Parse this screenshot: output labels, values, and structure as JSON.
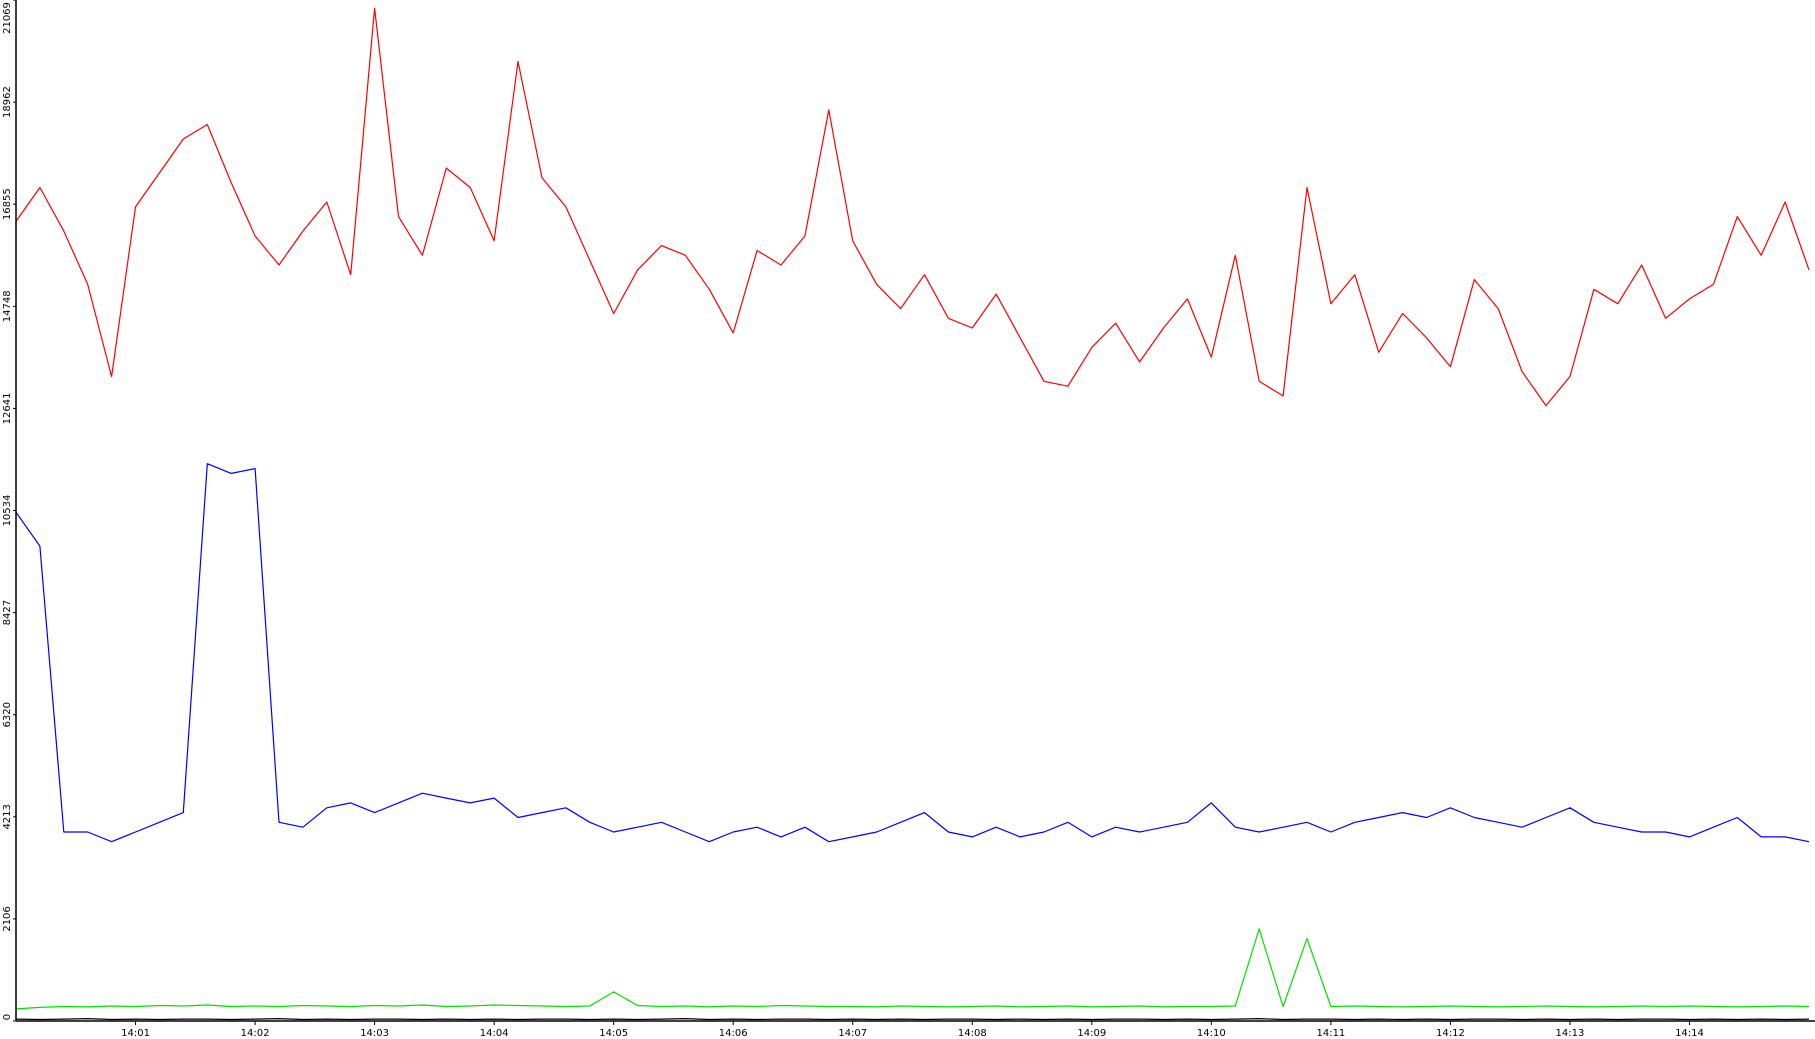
{
  "chart_data": {
    "type": "line",
    "x": [
      0,
      0.2,
      0.4,
      0.6,
      0.8,
      1,
      1.2,
      1.4,
      1.6,
      1.8,
      2,
      2.2,
      2.4,
      2.6,
      2.8,
      3,
      3.2,
      3.4,
      3.6,
      3.8,
      4,
      4.2,
      4.4,
      4.6,
      4.8,
      5,
      5.2,
      5.4,
      5.6,
      5.8,
      6,
      6.2,
      6.4,
      6.6,
      6.8,
      7,
      7.2,
      7.4,
      7.6,
      7.8,
      8,
      8.2,
      8.4,
      8.6,
      8.8,
      9,
      9.2,
      9.4,
      9.6,
      9.8,
      10,
      10.2,
      10.4,
      10.6,
      10.8,
      11,
      11.2,
      11.4,
      11.6,
      11.8,
      12,
      12.2,
      12.4,
      12.6,
      12.8,
      13,
      13.2,
      13.4,
      13.6,
      13.8,
      14,
      14.2,
      14.4,
      14.6,
      14.8,
      15
    ],
    "series": [
      {
        "color": "#ff0000",
        "values": [
          16500,
          17200,
          16300,
          15200,
          13300,
          16800,
          17500,
          18200,
          18500,
          17300,
          16200,
          15600,
          16300,
          16900,
          15400,
          20900,
          16600,
          15800,
          17600,
          17200,
          16100,
          19800,
          17400,
          16800,
          15700,
          14600,
          15500,
          16000,
          15800,
          15100,
          14200,
          15900,
          15600,
          16200,
          18800,
          16100,
          15200,
          14700,
          15400,
          14500,
          14300,
          15000,
          14100,
          13200,
          13100,
          13900,
          14400,
          13600,
          14300,
          14900,
          13700,
          15800,
          13200,
          12900,
          17200,
          14800,
          15400,
          13800,
          14600,
          14100,
          13500,
          15300,
          14700,
          13400,
          12700,
          13300,
          15100,
          14800,
          15600,
          14500,
          14900,
          15200,
          16600,
          15800,
          16900,
          15500
        ]
      },
      {
        "color": "#0000ff",
        "values": [
          10500,
          9800,
          3900,
          3900,
          3700,
          3900,
          4100,
          4300,
          11500,
          11300,
          11400,
          4100,
          4000,
          4400,
          4500,
          4300,
          4500,
          4700,
          4600,
          4500,
          4600,
          4200,
          4300,
          4400,
          4100,
          3900,
          4000,
          4100,
          3900,
          3700,
          3900,
          4000,
          3800,
          4000,
          3700,
          3800,
          3900,
          4100,
          4300,
          3900,
          3800,
          4000,
          3800,
          3900,
          4100,
          3800,
          4000,
          3900,
          4000,
          4100,
          4500,
          4000,
          3900,
          4000,
          4100,
          3900,
          4100,
          4200,
          4300,
          4200,
          4400,
          4200,
          4100,
          4000,
          4200,
          4400,
          4100,
          4000,
          3900,
          3900,
          3800,
          4000,
          4200,
          3800,
          3800,
          3700
        ]
      },
      {
        "color": "#00e000",
        "values": [
          250,
          280,
          300,
          290,
          310,
          300,
          320,
          310,
          330,
          300,
          310,
          300,
          320,
          310,
          300,
          320,
          310,
          330,
          300,
          310,
          330,
          320,
          310,
          300,
          310,
          600,
          320,
          300,
          310,
          290,
          310,
          300,
          320,
          310,
          300,
          300,
          290,
          310,
          300,
          290,
          300,
          310,
          290,
          300,
          310,
          290,
          300,
          310,
          290,
          300,
          300,
          310,
          1900,
          300,
          1700,
          300,
          310,
          300,
          290,
          300,
          310,
          300,
          290,
          300,
          310,
          300,
          290,
          300,
          310,
          300,
          310,
          300,
          290,
          300,
          310,
          300
        ]
      },
      {
        "color": "#000000",
        "values": [
          40,
          30,
          40,
          50,
          30,
          40,
          30,
          40,
          40,
          30,
          40,
          50,
          30,
          40,
          30,
          40,
          40,
          30,
          40,
          30,
          40,
          30,
          40,
          40,
          30,
          40,
          30,
          40,
          50,
          30,
          40,
          30,
          40,
          40,
          30,
          40,
          30,
          40,
          30,
          40,
          40,
          30,
          40,
          30,
          40,
          30,
          40,
          40,
          30,
          40,
          30,
          40,
          50,
          30,
          40,
          40,
          30,
          40,
          30,
          40,
          30,
          40,
          40,
          30,
          40,
          30,
          40,
          30,
          40,
          40,
          30,
          40,
          30,
          40,
          30,
          40
        ]
      }
    ],
    "xlim": [
      0,
      15.05
    ],
    "xticks": [
      {
        "value": 1,
        "label": "14:01"
      },
      {
        "value": 2,
        "label": "14:02"
      },
      {
        "value": 3,
        "label": "14:03"
      },
      {
        "value": 4,
        "label": "14:04"
      },
      {
        "value": 5,
        "label": "14:05"
      },
      {
        "value": 6,
        "label": "14:06"
      },
      {
        "value": 7,
        "label": "14:07"
      },
      {
        "value": 8,
        "label": "14:08"
      },
      {
        "value": 9,
        "label": "14:09"
      },
      {
        "value": 10,
        "label": "14:10"
      },
      {
        "value": 11,
        "label": "14:11"
      },
      {
        "value": 12,
        "label": "14:12"
      },
      {
        "value": 13,
        "label": "14:13"
      },
      {
        "value": 14,
        "label": "14:14"
      }
    ],
    "ylim": [
      0,
      21069
    ],
    "yticks": [
      0,
      2106,
      4213,
      6320,
      8427,
      10534,
      12641,
      14748,
      16855,
      18962,
      21069
    ],
    "grid": false
  }
}
